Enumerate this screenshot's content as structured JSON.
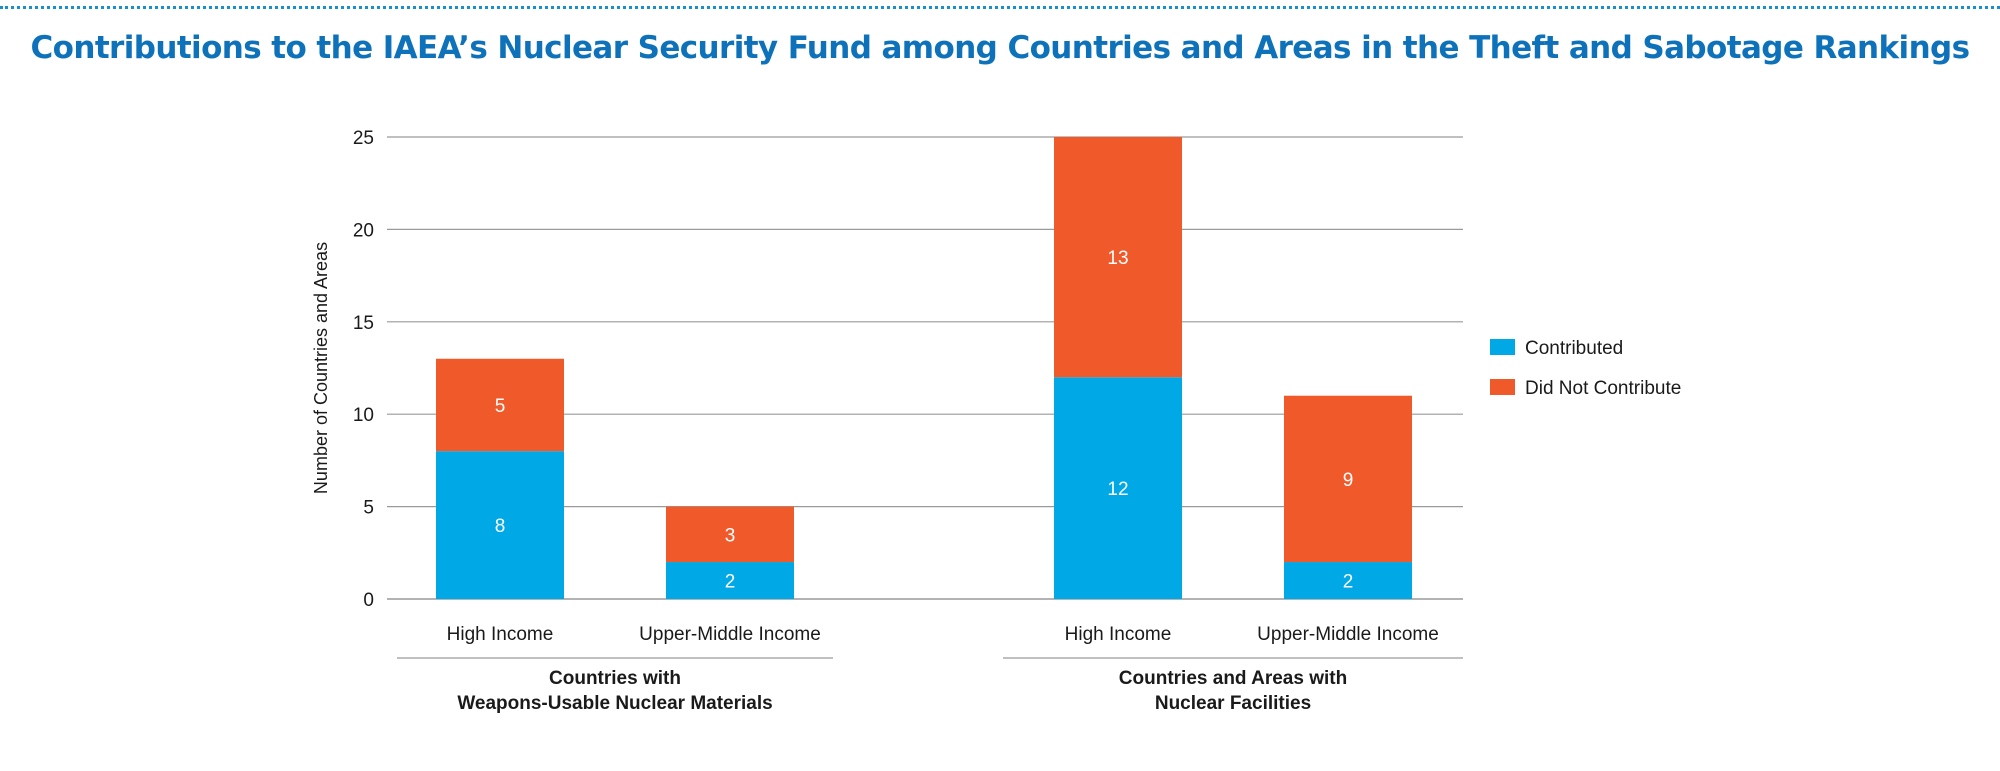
{
  "chart_data": {
    "type": "bar",
    "stacked": true,
    "title": "Contributions to the IAEA’s Nuclear Security Fund among Countries and Areas in the Theft and Sabotage Rankings",
    "xlabel": "",
    "ylabel": "Number of Countries and Areas",
    "ylim": [
      0,
      25
    ],
    "yticks": [
      0,
      5,
      10,
      15,
      20,
      25
    ],
    "grid": true,
    "legend_position": "right",
    "categories": [
      "High Income",
      "Upper-Middle Income",
      "High Income",
      "Upper-Middle Income"
    ],
    "groups": [
      {
        "label_lines": [
          "Countries with",
          "Weapons-Usable Nuclear Materials"
        ],
        "category_indices": [
          0,
          1
        ]
      },
      {
        "label_lines": [
          "Countries and Areas with",
          "Nuclear Facilities"
        ],
        "category_indices": [
          2,
          3
        ]
      }
    ],
    "series": [
      {
        "name": "Contributed",
        "values": [
          8,
          2,
          12,
          2
        ],
        "color": "#00a8e6"
      },
      {
        "name": "Did Not Contribute",
        "values": [
          5,
          3,
          13,
          9
        ],
        "color": "#f05a2b"
      }
    ]
  },
  "colors": {
    "title": "#0e72bb",
    "dots": "#1a8fd0",
    "grid": "#9a9a9a",
    "text": "#1a1a1a",
    "bar_label": "#ffffff"
  }
}
